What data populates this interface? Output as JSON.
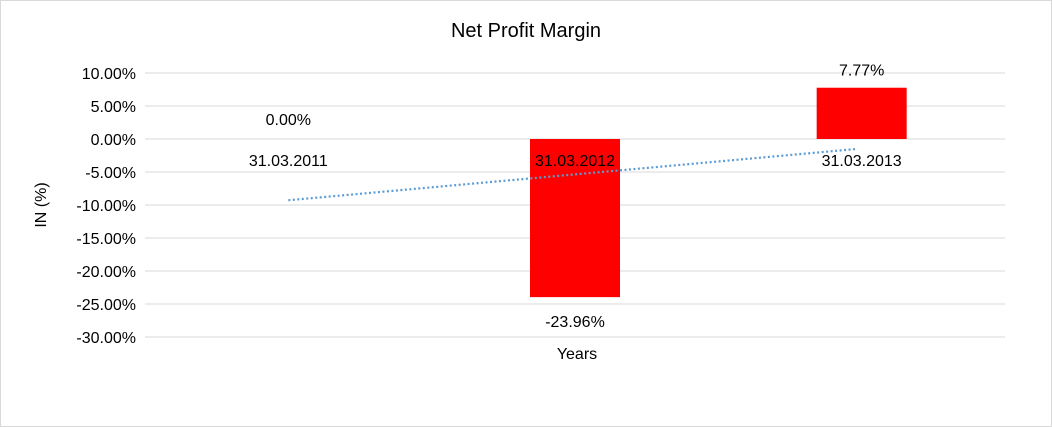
{
  "chart_data": {
    "type": "bar",
    "title": "Net Profit Margin",
    "xlabel": "Years",
    "ylabel": "IN (%)",
    "categories": [
      "31.03.2011",
      "31.03.2012",
      "31.03.2013"
    ],
    "values": [
      0.0,
      -23.96,
      7.77
    ],
    "data_labels": [
      "0.00%",
      "-23.96%",
      "7.77%"
    ],
    "ylim": [
      -30,
      10
    ],
    "yticks": [
      10,
      5,
      0,
      -5,
      -10,
      -15,
      -20,
      -25,
      -30
    ],
    "ytick_labels": [
      "10.00%",
      "5.00%",
      "0.00%",
      "-5.00%",
      "-10.00%",
      "-15.00%",
      "-20.00%",
      "-25.00%",
      "-30.00%"
    ],
    "grid": true,
    "bar_color": "#ff0000",
    "trendline": {
      "type": "linear",
      "style": "dotted",
      "color": "#5b9bd5"
    }
  }
}
